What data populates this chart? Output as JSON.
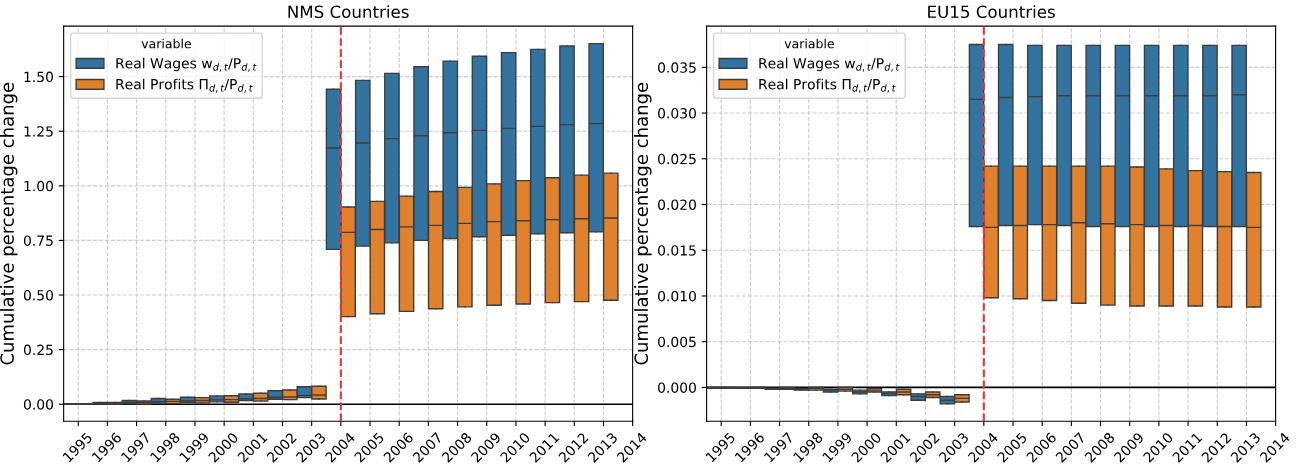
{
  "chart_data": [
    {
      "type": "box",
      "title": "NMS Countries",
      "ylabel": "Cumulative percentage change",
      "legend_title": "variable",
      "legend": "top left",
      "grid": true,
      "categories": [
        "1995",
        "1996",
        "1997",
        "1998",
        "1999",
        "2000",
        "2001",
        "2002",
        "2003",
        "2004",
        "2005",
        "2006",
        "2007",
        "2008",
        "2009",
        "2010",
        "2011",
        "2012",
        "2013",
        "2014"
      ],
      "ylim": [
        -0.078,
        1.731
      ],
      "yticks": [
        {
          "value": 0,
          "label": "0.00"
        },
        {
          "value": 0.25,
          "label": "0.25"
        },
        {
          "value": 0.5,
          "label": "0.50"
        },
        {
          "value": 0.75,
          "label": "0.75"
        },
        {
          "value": 1.0,
          "label": "1.00"
        },
        {
          "value": 1.25,
          "label": "1.25"
        },
        {
          "value": 1.5,
          "label": "1.50"
        }
      ],
      "ref_lines": [
        {
          "axis": "y",
          "value": 0,
          "color": "#000000",
          "line_style": "solid"
        },
        {
          "axis": "x",
          "value": "2004",
          "color": "#f03232",
          "line_style": "dashed"
        }
      ],
      "series": [
        {
          "name": "Real Wages w$_{d,t}$/P$_{d,t}$",
          "color": "#3274a1",
          "boxes": [
            {
              "low": 0,
              "q1": 0,
              "median": 0.001,
              "q3": 0.002,
              "high": 0.002
            },
            {
              "low": 0.001,
              "q1": 0.001,
              "median": 0.004,
              "q3": 0.008,
              "high": 0.008
            },
            {
              "low": 0.002,
              "q1": 0.002,
              "median": 0.008,
              "q3": 0.017,
              "high": 0.017
            },
            {
              "low": 0.005,
              "q1": 0.005,
              "median": 0.012,
              "q3": 0.026,
              "high": 0.026
            },
            {
              "low": 0.008,
              "q1": 0.008,
              "median": 0.016,
              "q3": 0.032,
              "high": 0.032
            },
            {
              "low": 0.011,
              "q1": 0.011,
              "median": 0.02,
              "q3": 0.038,
              "high": 0.038
            },
            {
              "low": 0.017,
              "q1": 0.017,
              "median": 0.025,
              "q3": 0.047,
              "high": 0.047
            },
            {
              "low": 0.023,
              "q1": 0.023,
              "median": 0.032,
              "q3": 0.062,
              "high": 0.062
            },
            {
              "low": 0.03,
              "q1": 0.03,
              "median": 0.04,
              "q3": 0.08,
              "high": 0.08
            },
            {
              "low": 0.709,
              "q1": 0.709,
              "median": 1.173,
              "q3": 1.442,
              "high": 1.442
            },
            {
              "low": 0.724,
              "q1": 0.724,
              "median": 1.196,
              "q3": 1.483,
              "high": 1.483
            },
            {
              "low": 0.739,
              "q1": 0.739,
              "median": 1.216,
              "q3": 1.515,
              "high": 1.515
            },
            {
              "low": 0.75,
              "q1": 0.75,
              "median": 1.229,
              "q3": 1.545,
              "high": 1.545
            },
            {
              "low": 0.759,
              "q1": 0.759,
              "median": 1.243,
              "q3": 1.571,
              "high": 1.571
            },
            {
              "low": 0.767,
              "q1": 0.767,
              "median": 1.254,
              "q3": 1.593,
              "high": 1.593
            },
            {
              "low": 0.774,
              "q1": 0.774,
              "median": 1.263,
              "q3": 1.61,
              "high": 1.61
            },
            {
              "low": 0.78,
              "q1": 0.78,
              "median": 1.272,
              "q3": 1.625,
              "high": 1.625
            },
            {
              "low": 0.785,
              "q1": 0.785,
              "median": 1.28,
              "q3": 1.64,
              "high": 1.64
            },
            {
              "low": 0.789,
              "q1": 0.789,
              "median": 1.285,
              "q3": 1.651,
              "high": 1.651
            },
            null
          ]
        },
        {
          "name": "Real Profits Π$_{d,t}$/P$_{d,t}$",
          "color": "#e1812c",
          "boxes": [
            {
              "low": 0,
              "q1": 0,
              "median": 0.001,
              "q3": 0.002,
              "high": 0.002
            },
            {
              "low": 0.0,
              "q1": 0.0,
              "median": 0.004,
              "q3": 0.008,
              "high": 0.008
            },
            {
              "low": 0.001,
              "q1": 0.001,
              "median": 0.009,
              "q3": 0.015,
              "high": 0.015
            },
            {
              "low": 0.003,
              "q1": 0.003,
              "median": 0.013,
              "q3": 0.023,
              "high": 0.023
            },
            {
              "low": 0.006,
              "q1": 0.006,
              "median": 0.017,
              "q3": 0.03,
              "high": 0.03
            },
            {
              "low": 0.009,
              "q1": 0.009,
              "median": 0.021,
              "q3": 0.039,
              "high": 0.039
            },
            {
              "low": 0.014,
              "q1": 0.014,
              "median": 0.026,
              "q3": 0.05,
              "high": 0.05
            },
            {
              "low": 0.021,
              "q1": 0.021,
              "median": 0.033,
              "q3": 0.065,
              "high": 0.065
            },
            {
              "low": 0.024,
              "q1": 0.024,
              "median": 0.042,
              "q3": 0.082,
              "high": 0.082
            },
            {
              "low": 0.401,
              "q1": 0.401,
              "median": 0.787,
              "q3": 0.903,
              "high": 0.903
            },
            {
              "low": 0.414,
              "q1": 0.414,
              "median": 0.8,
              "q3": 0.929,
              "high": 0.929
            },
            {
              "low": 0.425,
              "q1": 0.425,
              "median": 0.812,
              "q3": 0.953,
              "high": 0.953
            },
            {
              "low": 0.437,
              "q1": 0.437,
              "median": 0.819,
              "q3": 0.974,
              "high": 0.974
            },
            {
              "low": 0.446,
              "q1": 0.446,
              "median": 0.828,
              "q3": 0.993,
              "high": 0.993
            },
            {
              "low": 0.453,
              "q1": 0.453,
              "median": 0.836,
              "q3": 1.009,
              "high": 1.009
            },
            {
              "low": 0.459,
              "q1": 0.459,
              "median": 0.84,
              "q3": 1.024,
              "high": 1.024
            },
            {
              "low": 0.465,
              "q1": 0.465,
              "median": 0.845,
              "q3": 1.037,
              "high": 1.037
            },
            {
              "low": 0.47,
              "q1": 0.47,
              "median": 0.849,
              "q3": 1.049,
              "high": 1.049
            },
            {
              "low": 0.476,
              "q1": 0.476,
              "median": 0.853,
              "q3": 1.058,
              "high": 1.058
            },
            null
          ]
        }
      ]
    },
    {
      "type": "box",
      "title": "EU15 Countries",
      "ylabel": "Cumulative percentage change",
      "legend_title": "variable",
      "legend": "top left",
      "grid": true,
      "categories": [
        "1995",
        "1996",
        "1997",
        "1998",
        "1999",
        "2000",
        "2001",
        "2002",
        "2003",
        "2004",
        "2005",
        "2006",
        "2007",
        "2008",
        "2009",
        "2010",
        "2011",
        "2012",
        "2013",
        "2014"
      ],
      "ylim": [
        -0.0037,
        0.0395
      ],
      "yticks": [
        {
          "value": 0,
          "label": "0.000"
        },
        {
          "value": 0.005,
          "label": "0.005"
        },
        {
          "value": 0.01,
          "label": "0.010"
        },
        {
          "value": 0.015,
          "label": "0.015"
        },
        {
          "value": 0.02,
          "label": "0.020"
        },
        {
          "value": 0.025,
          "label": "0.025"
        },
        {
          "value": 0.03,
          "label": "0.030"
        },
        {
          "value": 0.035,
          "label": "0.035"
        }
      ],
      "ref_lines": [
        {
          "axis": "y",
          "value": 0,
          "color": "#000000",
          "line_style": "solid"
        },
        {
          "axis": "x",
          "value": "2004",
          "color": "#f03232",
          "line_style": "dashed"
        }
      ],
      "series": [
        {
          "name": "Real Wages w$_{d,t}$/P$_{d,t}$",
          "color": "#3274a1",
          "boxes": [
            {
              "low": -0.0001,
              "q1": -0.0001,
              "median": 0,
              "q3": 0,
              "high": 0
            },
            {
              "low": -0.0001,
              "q1": -0.0001,
              "median": -0.0001,
              "q3": 0,
              "high": 0
            },
            {
              "low": -0.0002,
              "q1": -0.0002,
              "median": -0.0001,
              "q3": -0.0001,
              "high": -0.0001
            },
            {
              "low": -0.0003,
              "q1": -0.0003,
              "median": -0.0002,
              "q3": -0.0001,
              "high": -0.0001
            },
            {
              "low": -0.0005,
              "q1": -0.0005,
              "median": -0.0003,
              "q3": -0.0002,
              "high": -0.0002
            },
            {
              "low": -0.0007,
              "q1": -0.0007,
              "median": -0.0005,
              "q3": -0.0003,
              "high": -0.0003
            },
            {
              "low": -0.0009,
              "q1": -0.0009,
              "median": -0.0007,
              "q3": -0.0005,
              "high": -0.0005
            },
            {
              "low": -0.0014,
              "q1": -0.0014,
              "median": -0.001,
              "q3": -0.0007,
              "high": -0.0007
            },
            {
              "low": -0.0018,
              "q1": -0.0018,
              "median": -0.0014,
              "q3": -0.001,
              "high": -0.001
            },
            {
              "low": 0.0176,
              "q1": 0.0176,
              "median": 0.0315,
              "q3": 0.0375,
              "high": 0.0375
            },
            {
              "low": 0.0177,
              "q1": 0.0177,
              "median": 0.0317,
              "q3": 0.0375,
              "high": 0.0375
            },
            {
              "low": 0.0178,
              "q1": 0.0178,
              "median": 0.0318,
              "q3": 0.0374,
              "high": 0.0374
            },
            {
              "low": 0.0177,
              "q1": 0.0177,
              "median": 0.0319,
              "q3": 0.0374,
              "high": 0.0374
            },
            {
              "low": 0.0176,
              "q1": 0.0176,
              "median": 0.0319,
              "q3": 0.0374,
              "high": 0.0374
            },
            {
              "low": 0.0176,
              "q1": 0.0176,
              "median": 0.0319,
              "q3": 0.0374,
              "high": 0.0374
            },
            {
              "low": 0.0176,
              "q1": 0.0176,
              "median": 0.0319,
              "q3": 0.0374,
              "high": 0.0374
            },
            {
              "low": 0.0176,
              "q1": 0.0176,
              "median": 0.0319,
              "q3": 0.0374,
              "high": 0.0374
            },
            {
              "low": 0.0176,
              "q1": 0.0176,
              "median": 0.0319,
              "q3": 0.0374,
              "high": 0.0374
            },
            {
              "low": 0.0176,
              "q1": 0.0176,
              "median": 0.032,
              "q3": 0.0374,
              "high": 0.0374
            },
            null
          ]
        },
        {
          "name": "Real Profits Π$_{d,t}$/P$_{d,t}$",
          "color": "#e1812c",
          "boxes": [
            {
              "low": -0.0001,
              "q1": -0.0001,
              "median": 0,
              "q3": 0,
              "high": 0
            },
            {
              "low": -0.0001,
              "q1": -0.0001,
              "median": 0,
              "q3": 0,
              "high": 0
            },
            {
              "low": -0.0002,
              "q1": -0.0002,
              "median": -0.0001,
              "q3": 0,
              "high": 0
            },
            {
              "low": -0.0003,
              "q1": -0.0003,
              "median": -0.0001,
              "q3": 0,
              "high": 0
            },
            {
              "low": -0.0004,
              "q1": -0.0004,
              "median": -0.0002,
              "q3": 0,
              "high": 0
            },
            {
              "low": -0.0005,
              "q1": -0.0005,
              "median": -0.0003,
              "q3": -0.0001,
              "high": -0.0001
            },
            {
              "low": -0.0008,
              "q1": -0.0008,
              "median": -0.0005,
              "q3": -0.0002,
              "high": -0.0002
            },
            {
              "low": -0.0011,
              "q1": -0.0011,
              "median": -0.0008,
              "q3": -0.0005,
              "high": -0.0005
            },
            {
              "low": -0.0016,
              "q1": -0.0016,
              "median": -0.0012,
              "q3": -0.0008,
              "high": -0.0008
            },
            {
              "low": 0.0098,
              "q1": 0.0098,
              "median": 0.0175,
              "q3": 0.0242,
              "high": 0.0242
            },
            {
              "low": 0.0097,
              "q1": 0.0097,
              "median": 0.0177,
              "q3": 0.0242,
              "high": 0.0242
            },
            {
              "low": 0.0095,
              "q1": 0.0095,
              "median": 0.0178,
              "q3": 0.0242,
              "high": 0.0242
            },
            {
              "low": 0.0092,
              "q1": 0.0092,
              "median": 0.018,
              "q3": 0.0242,
              "high": 0.0242
            },
            {
              "low": 0.009,
              "q1": 0.009,
              "median": 0.0179,
              "q3": 0.0242,
              "high": 0.0242
            },
            {
              "low": 0.0089,
              "q1": 0.0089,
              "median": 0.0178,
              "q3": 0.0241,
              "high": 0.0241
            },
            {
              "low": 0.0089,
              "q1": 0.0089,
              "median": 0.0177,
              "q3": 0.0239,
              "high": 0.0239
            },
            {
              "low": 0.0089,
              "q1": 0.0089,
              "median": 0.0177,
              "q3": 0.0237,
              "high": 0.0237
            },
            {
              "low": 0.0088,
              "q1": 0.0088,
              "median": 0.0176,
              "q3": 0.0236,
              "high": 0.0236
            },
            {
              "low": 0.0088,
              "q1": 0.0088,
              "median": 0.0175,
              "q3": 0.0235,
              "high": 0.0235
            },
            null
          ]
        }
      ]
    }
  ]
}
